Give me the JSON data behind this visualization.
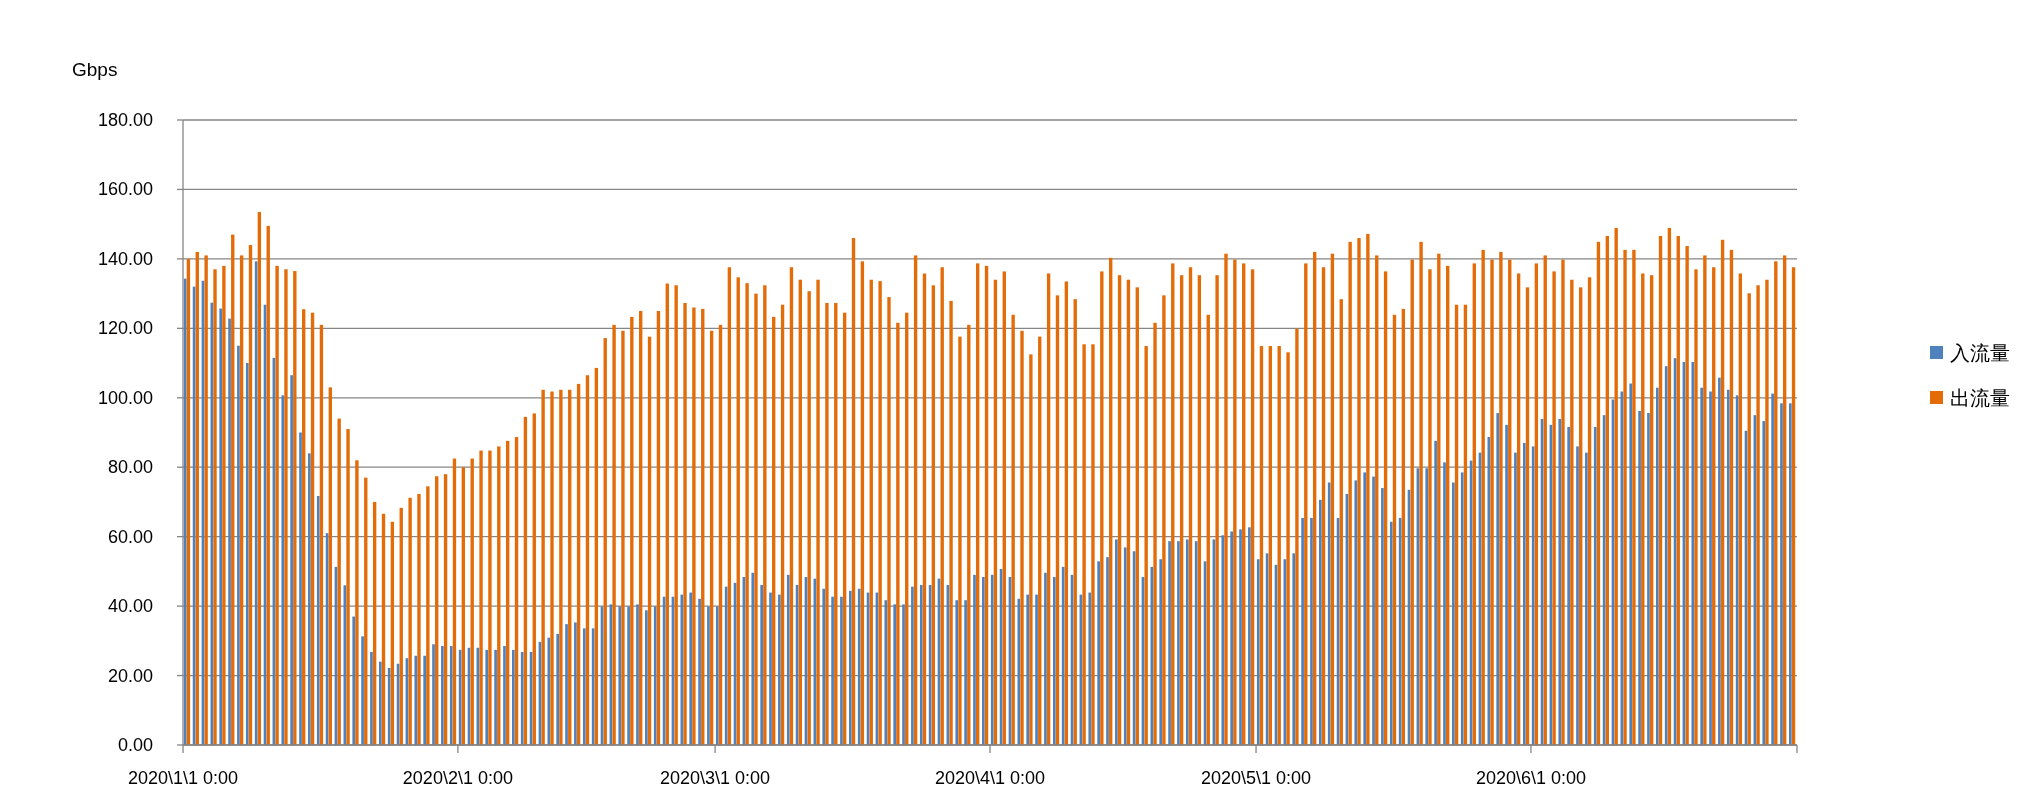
{
  "chart_data": {
    "type": "bar",
    "ylabel": "Gbps",
    "x": [
      "2020-01-01",
      "2020-01-02",
      "2020-01-03",
      "2020-01-04",
      "2020-01-05",
      "2020-01-06",
      "2020-01-07",
      "2020-01-08",
      "2020-01-09",
      "2020-01-10",
      "2020-01-11",
      "2020-01-12",
      "2020-01-13",
      "2020-01-14",
      "2020-01-15",
      "2020-01-16",
      "2020-01-17",
      "2020-01-18",
      "2020-01-19",
      "2020-01-20",
      "2020-01-21",
      "2020-01-22",
      "2020-01-23",
      "2020-01-24",
      "2020-01-25",
      "2020-01-26",
      "2020-01-27",
      "2020-01-28",
      "2020-01-29",
      "2020-01-30",
      "2020-01-31",
      "2020-02-01",
      "2020-02-02",
      "2020-02-03",
      "2020-02-04",
      "2020-02-05",
      "2020-02-06",
      "2020-02-07",
      "2020-02-08",
      "2020-02-09",
      "2020-02-10",
      "2020-02-11",
      "2020-02-12",
      "2020-02-13",
      "2020-02-14",
      "2020-02-15",
      "2020-02-16",
      "2020-02-17",
      "2020-02-18",
      "2020-02-19",
      "2020-02-20",
      "2020-02-21",
      "2020-02-22",
      "2020-02-23",
      "2020-02-24",
      "2020-02-25",
      "2020-02-26",
      "2020-02-27",
      "2020-02-28",
      "2020-02-29",
      "2020-03-01",
      "2020-03-02",
      "2020-03-03",
      "2020-03-04",
      "2020-03-05",
      "2020-03-06",
      "2020-03-07",
      "2020-03-08",
      "2020-03-09",
      "2020-03-10",
      "2020-03-11",
      "2020-03-12",
      "2020-03-13",
      "2020-03-14",
      "2020-03-15",
      "2020-03-16",
      "2020-03-17",
      "2020-03-18",
      "2020-03-19",
      "2020-03-20",
      "2020-03-21",
      "2020-03-22",
      "2020-03-23",
      "2020-03-24",
      "2020-03-25",
      "2020-03-26",
      "2020-03-27",
      "2020-03-28",
      "2020-03-29",
      "2020-03-30",
      "2020-03-31",
      "2020-04-01",
      "2020-04-02",
      "2020-04-03",
      "2020-04-04",
      "2020-04-05",
      "2020-04-06",
      "2020-04-07",
      "2020-04-08",
      "2020-04-09",
      "2020-04-10",
      "2020-04-11",
      "2020-04-12",
      "2020-04-13",
      "2020-04-14",
      "2020-04-15",
      "2020-04-16",
      "2020-04-17",
      "2020-04-18",
      "2020-04-19",
      "2020-04-20",
      "2020-04-21",
      "2020-04-22",
      "2020-04-23",
      "2020-04-24",
      "2020-04-25",
      "2020-04-26",
      "2020-04-27",
      "2020-04-28",
      "2020-04-29",
      "2020-04-30",
      "2020-05-01",
      "2020-05-02",
      "2020-05-03",
      "2020-05-04",
      "2020-05-05",
      "2020-05-06",
      "2020-05-07",
      "2020-05-08",
      "2020-05-09",
      "2020-05-10",
      "2020-05-11",
      "2020-05-12",
      "2020-05-13",
      "2020-05-14",
      "2020-05-15",
      "2020-05-16",
      "2020-05-17",
      "2020-05-18",
      "2020-05-19",
      "2020-05-20",
      "2020-05-21",
      "2020-05-22",
      "2020-05-23",
      "2020-05-24",
      "2020-05-25",
      "2020-05-26",
      "2020-05-27",
      "2020-05-28",
      "2020-05-29",
      "2020-05-30",
      "2020-05-31",
      "2020-06-01",
      "2020-06-02",
      "2020-06-03",
      "2020-06-04",
      "2020-06-05",
      "2020-06-06",
      "2020-06-07",
      "2020-06-08",
      "2020-06-09",
      "2020-06-10",
      "2020-06-11",
      "2020-06-12",
      "2020-06-13",
      "2020-06-14",
      "2020-06-15",
      "2020-06-16",
      "2020-06-17",
      "2020-06-18",
      "2020-06-19",
      "2020-06-20",
      "2020-06-21",
      "2020-06-22",
      "2020-06-23",
      "2020-06-24",
      "2020-06-25",
      "2020-06-26",
      "2020-06-27",
      "2020-06-28",
      "2020-06-29",
      "2020-06-30"
    ],
    "series": [
      {
        "name": "入流量",
        "color": "#4f81bd",
        "values": [
          134.3,
          132,
          133.7,
          127.4,
          125.7,
          122.8,
          115,
          110,
          139.3,
          126.8,
          111.5,
          100.7,
          106.5,
          90,
          84,
          71.7,
          61,
          51.3,
          46,
          37,
          31.3,
          26.8,
          24,
          22.2,
          23.4,
          25,
          25.7,
          25.7,
          29,
          28.5,
          28.5,
          27.4,
          28,
          28,
          27.4,
          27.4,
          28.5,
          27.4,
          26.8,
          26.8,
          29.7,
          30.9,
          32,
          34.8,
          35.3,
          33.6,
          33.6,
          39.9,
          40.5,
          39.9,
          39.9,
          40.5,
          38.8,
          39.9,
          42.7,
          42.7,
          43.3,
          43.9,
          42.1,
          39.9,
          39.9,
          45.6,
          46.7,
          48.4,
          49.6,
          46.1,
          43.9,
          43.3,
          49,
          46.1,
          48.4,
          47.9,
          45,
          42.7,
          42.7,
          44.4,
          45,
          43.9,
          43.9,
          41.7,
          40.5,
          40.5,
          45.6,
          46.1,
          46.1,
          47.9,
          46.1,
          41.7,
          41.7,
          49,
          48.4,
          49,
          50.7,
          48.4,
          42.1,
          43.3,
          43.3,
          49.6,
          48.4,
          51.3,
          49,
          43.3,
          43.9,
          52.9,
          54.1,
          59.2,
          56.9,
          55.8,
          48.4,
          51.3,
          53.5,
          58.7,
          58.7,
          59.2,
          58.7,
          52.9,
          59.2,
          60.4,
          61.5,
          62.1,
          62.7,
          53.5,
          55.2,
          51.9,
          53.5,
          55.2,
          65.4,
          65.4,
          70.6,
          75.6,
          65.4,
          72.3,
          76.2,
          78.5,
          77.3,
          74,
          64.3,
          65.4,
          73.5,
          79.7,
          79.7,
          87.6,
          81.4,
          75.6,
          78.5,
          81.9,
          84.2,
          88.7,
          95.6,
          92.2,
          84.2,
          87,
          86,
          93.9,
          92.2,
          93.9,
          91.6,
          86,
          84.2,
          91.6,
          95,
          99.5,
          101.8,
          104.1,
          96.2,
          95.6,
          102.9,
          109.1,
          111.4,
          110.3,
          110.3,
          102.9,
          101.8,
          105.8,
          102.3,
          100.7,
          90.5,
          95,
          93.3,
          101.2,
          98.4,
          98.4
        ]
      },
      {
        "name": "出流量",
        "color": "#e36c09",
        "values": [
          140,
          142,
          141,
          137,
          138,
          147,
          141,
          144,
          153.5,
          149.5,
          138,
          137,
          136.5,
          125.5,
          124.5,
          121,
          103,
          94,
          91,
          82,
          77,
          70,
          66.6,
          64.3,
          68.3,
          71.2,
          72.3,
          74.5,
          77.4,
          78,
          82.5,
          80,
          82.5,
          84.8,
          84.8,
          86,
          87.6,
          88.7,
          94.5,
          95.5,
          102.3,
          101.8,
          102.3,
          102.3,
          104,
          106.5,
          108.6,
          117.2,
          121,
          119.3,
          123.3,
          125,
          117.6,
          125,
          132.9,
          132.4,
          127.3,
          126,
          125.6,
          119.3,
          121,
          137.6,
          134.7,
          133,
          130,
          132.4,
          123.3,
          126.8,
          137.6,
          134,
          130.7,
          134,
          127.3,
          127.3,
          124.5,
          146,
          139.3,
          134,
          133.6,
          129,
          121.6,
          124.5,
          141,
          135.8,
          132.4,
          137.6,
          127.9,
          117.6,
          121,
          138.7,
          138,
          134,
          136.4,
          123.9,
          119.3,
          112.5,
          117.6,
          135.8,
          129.5,
          133.5,
          128.4,
          115.4,
          115.4,
          136.4,
          140.3,
          135.3,
          134,
          131.8,
          114.9,
          121.6,
          129.5,
          138.7,
          135.3,
          137.6,
          135.3,
          123.9,
          135.3,
          141.5,
          139.8,
          138.7,
          137,
          114.9,
          114.9,
          114.9,
          113.1,
          119.9,
          138.7,
          142,
          137.6,
          141.5,
          128.4,
          144.9,
          146,
          147.2,
          141,
          136.4,
          123.9,
          125.6,
          139.8,
          144.9,
          137,
          141.5,
          138,
          126.8,
          126.8,
          138.7,
          142.6,
          139.8,
          142,
          139.8,
          135.8,
          131.8,
          138.7,
          141,
          136.4,
          139.8,
          134,
          131.8,
          134.7,
          144.9,
          146.6,
          148.9,
          142.6,
          142.6,
          135.8,
          135.3,
          146.6,
          148.9,
          146.6,
          143.7,
          137,
          141,
          137.6,
          145.5,
          142.6,
          135.8,
          130.1,
          132.4,
          134,
          139.3,
          141,
          137.6
        ]
      }
    ],
    "xlim": [
      "2020-01-01",
      "2020-07-01"
    ],
    "xticks": [
      {
        "value": "2020-01-01",
        "label": "2020\\1\\1 0:00"
      },
      {
        "value": "2020-02-01",
        "label": "2020\\2\\1 0:00"
      },
      {
        "value": "2020-03-01",
        "label": "2020\\3\\1 0:00"
      },
      {
        "value": "2020-04-01",
        "label": "2020\\4\\1 0:00"
      },
      {
        "value": "2020-05-01",
        "label": "2020\\5\\1 0:00"
      },
      {
        "value": "2020-06-01",
        "label": "2020\\6\\1 0:00"
      },
      {
        "value": "2020-07-01",
        "label": null
      }
    ],
    "ylim": [
      0,
      180
    ],
    "yticks": [
      {
        "value": 0,
        "label": "0.00"
      },
      {
        "value": 20,
        "label": "20.00"
      },
      {
        "value": 40,
        "label": "40.00"
      },
      {
        "value": 60,
        "label": "60.00"
      },
      {
        "value": 80,
        "label": "80.00"
      },
      {
        "value": 100,
        "label": "100.00"
      },
      {
        "value": 120,
        "label": "120.00"
      },
      {
        "value": 140,
        "label": "140.00"
      },
      {
        "value": 160,
        "label": "160.00"
      },
      {
        "value": 180,
        "label": "180.00"
      }
    ],
    "grid": "y",
    "legend": "right"
  }
}
